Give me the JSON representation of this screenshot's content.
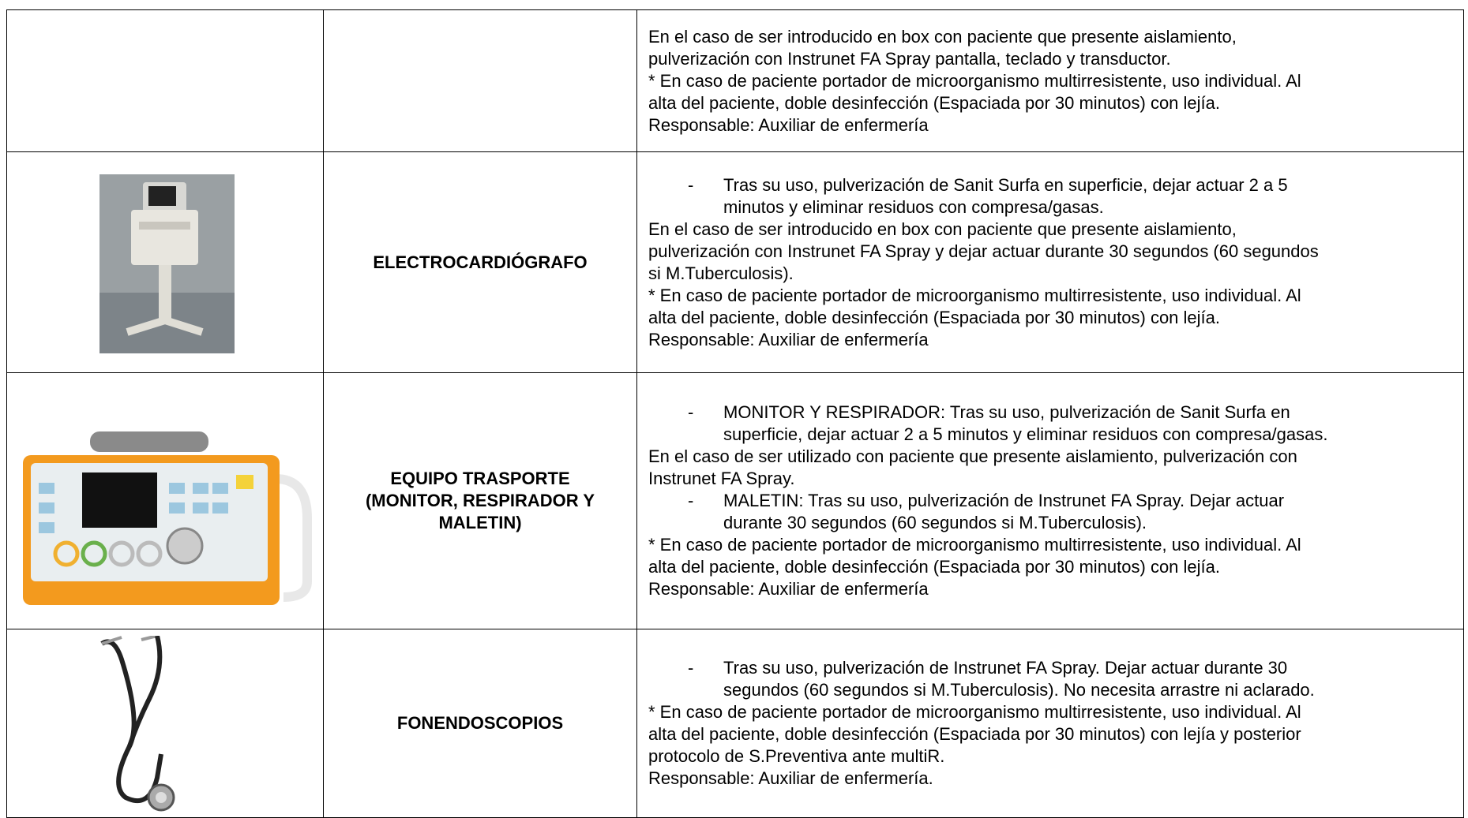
{
  "table": {
    "rows": [
      {
        "paragraphs": [
          {
            "lines": [
              "En el caso de ser introducido en box con paciente que presente aislamiento,",
              "pulverización con Instrunet FA Spray pantalla, teclado y transductor."
            ]
          },
          {
            "lines": [
              "* En caso de paciente portador de microorganismo multirresistente, uso individual. Al",
              "alta del paciente, doble desinfección (Espaciada por 30 minutos) con lejía."
            ]
          },
          {
            "lines": [
              "Responsable: Auxiliar de enfermería"
            ]
          }
        ]
      },
      {
        "name": [
          "ELECTROCARDIÓGRAFO"
        ],
        "paragraphs": [
          {
            "marker": "-",
            "lines": [
              "Tras su uso, pulverización de Sanit Surfa en superficie, dejar actuar 2 a 5",
              "minutos y eliminar residuos con compresa/gasas."
            ]
          },
          {
            "lines": [
              "En el caso de ser introducido en box con paciente que presente aislamiento,",
              "pulverización con Instrunet FA Spray y dejar actuar durante 30 segundos (60 segundos",
              "si M.Tuberculosis)."
            ]
          },
          {
            "lines": [
              "* En caso de paciente portador de microorganismo multirresistente, uso individual. Al",
              "alta del paciente, doble desinfección (Espaciada por 30 minutos) con lejía."
            ]
          },
          {
            "lines": [
              "Responsable: Auxiliar de enfermería"
            ]
          }
        ]
      },
      {
        "name": [
          "EQUIPO TRASPORTE",
          "(MONITOR, RESPIRADOR Y",
          "MALETIN)"
        ],
        "paragraphs": [
          {
            "marker": "-",
            "lines": [
              "MONITOR Y RESPIRADOR: Tras su uso, pulverización de Sanit Surfa en",
              "superficie, dejar actuar 2 a 5 minutos y eliminar residuos con compresa/gasas."
            ]
          },
          {
            "lines": [
              "En el caso de ser utilizado con paciente que presente aislamiento, pulverización con",
              "Instrunet FA Spray."
            ]
          },
          {
            "marker": "-",
            "lines": [
              "MALETIN: Tras su uso, pulverización de Instrunet FA Spray. Dejar actuar",
              "durante 30 segundos (60 segundos si M.Tuberculosis)."
            ]
          },
          {
            "lines": [
              "* En caso de paciente portador de microorganismo multirresistente, uso individual. Al",
              "alta del paciente, doble desinfección (Espaciada por 30 minutos) con lejía."
            ]
          },
          {
            "lines": [
              "Responsable: Auxiliar de enfermería"
            ]
          }
        ]
      },
      {
        "name": [
          "FONENDOSCOPIOS"
        ],
        "paragraphs": [
          {
            "marker": "-",
            "lines": [
              "Tras su uso, pulverización de Instrunet FA Spray. Dejar actuar durante 30",
              "segundos (60 segundos si M.Tuberculosis). No necesita arrastre ni aclarado."
            ]
          },
          {
            "lines": [
              "* En caso de paciente portador de microorganismo multirresistente, uso individual. Al",
              "alta del paciente, doble desinfección (Espaciada por 30 minutos) con lejía y posterior",
              "protocolo de S.Preventiva ante multiR."
            ]
          },
          {
            "lines": [
              "Responsable: Auxiliar de enfermería."
            ]
          }
        ]
      }
    ]
  }
}
